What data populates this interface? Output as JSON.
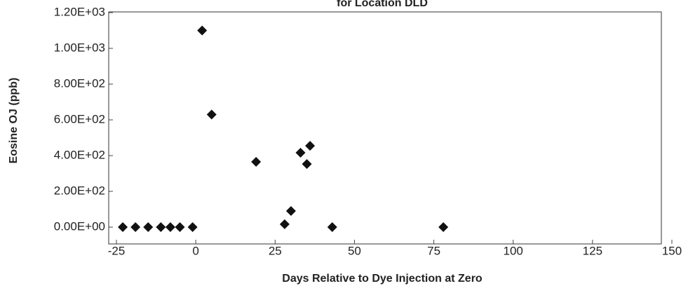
{
  "chart_data": {
    "type": "scatter",
    "title": "for Location DLD",
    "xlabel": "Days Relative to Dye Injection at Zero",
    "ylabel": "Eosine OJ (ppb)",
    "x": [
      -23,
      -19,
      -15,
      -11,
      -8,
      -5,
      -1,
      2,
      5,
      19,
      28,
      30,
      33,
      35,
      36,
      43,
      78
    ],
    "values": [
      0,
      0,
      0,
      0,
      0,
      0,
      0,
      1100,
      630,
      365,
      16,
      90,
      416,
      353,
      455,
      0,
      0
    ],
    "color": "#111111",
    "xlim": [
      -25,
      150
    ],
    "xticks": [
      -25,
      0,
      25,
      50,
      75,
      100,
      125,
      150
    ],
    "ylim": [
      0,
      1200
    ],
    "yticks": [
      {
        "value": 0,
        "label": "0.00E+00"
      },
      {
        "value": 200,
        "label": "2.00E+02"
      },
      {
        "value": 400,
        "label": "4.00E+02"
      },
      {
        "value": 600,
        "label": "6.00E+02"
      },
      {
        "value": 800,
        "label": "8.00E+02"
      },
      {
        "value": 1000,
        "label": "1.00E+03"
      },
      {
        "value": 1200,
        "label": "1.20E+03"
      }
    ]
  }
}
